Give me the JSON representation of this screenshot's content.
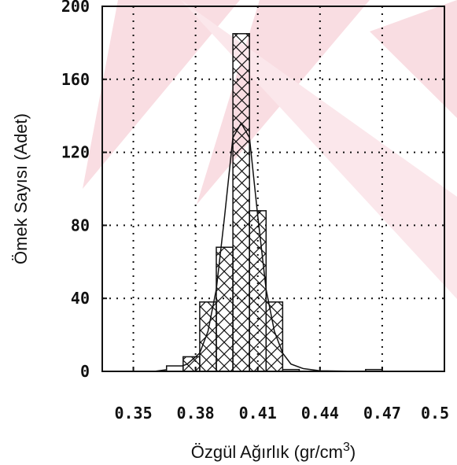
{
  "chart_data": {
    "type": "bar",
    "title": "",
    "xlabel": "Özgül Ağırlık (gr/cm",
    "xlabel_superscript": "3",
    "xlabel_close": ")",
    "ylabel": "Ömek Sayısı (Adet)",
    "xlim": [
      0.335,
      0.5
    ],
    "ylim": [
      0,
      200
    ],
    "x_ticks": [
      0.35,
      0.38,
      0.41,
      0.44,
      0.47,
      0.5
    ],
    "x_tick_labels": [
      "0.35",
      "0.38",
      "0.41",
      "0.44",
      "0.47",
      "0.5"
    ],
    "y_ticks": [
      0,
      40,
      80,
      120,
      160,
      200
    ],
    "y_tick_labels": [
      "0",
      "40",
      "80",
      "120",
      "160",
      "200"
    ],
    "grid": true,
    "bin_width": 0.008,
    "bars": [
      {
        "x": 0.37,
        "value": 3
      },
      {
        "x": 0.378,
        "value": 8
      },
      {
        "x": 0.386,
        "value": 38
      },
      {
        "x": 0.394,
        "value": 68
      },
      {
        "x": 0.402,
        "value": 185
      },
      {
        "x": 0.41,
        "value": 88
      },
      {
        "x": 0.418,
        "value": 38
      },
      {
        "x": 0.426,
        "value": 1
      },
      {
        "x": 0.466,
        "value": 1
      }
    ],
    "curve": [
      [
        0.34,
        0.0
      ],
      [
        0.36,
        0.0
      ],
      [
        0.37,
        1.5
      ],
      [
        0.376,
        4
      ],
      [
        0.382,
        10
      ],
      [
        0.386,
        22
      ],
      [
        0.39,
        45
      ],
      [
        0.394,
        85
      ],
      [
        0.398,
        128
      ],
      [
        0.402,
        136
      ],
      [
        0.406,
        128
      ],
      [
        0.41,
        85
      ],
      [
        0.414,
        45
      ],
      [
        0.418,
        22
      ],
      [
        0.422,
        10
      ],
      [
        0.426,
        4
      ],
      [
        0.432,
        1.5
      ],
      [
        0.44,
        0.3
      ],
      [
        0.46,
        0.0
      ],
      [
        0.5,
        0.0
      ]
    ],
    "colors": {
      "bar_stroke": "#111111",
      "bar_fill": "#ffffff",
      "hatch": "#111111",
      "grid": "#111111",
      "curve": "#111111",
      "watermark": "#f7d6dc"
    }
  }
}
